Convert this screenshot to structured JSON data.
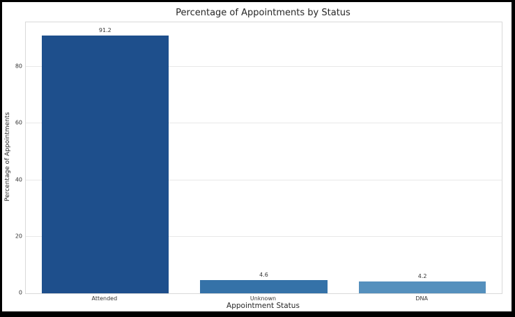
{
  "chart_data": {
    "type": "bar",
    "title": "Percentage of Appointments by Status",
    "xlabel": "Appointment Status",
    "ylabel": "Percentage of Appointments",
    "categories": [
      "Attended",
      "Unknown",
      "DNA"
    ],
    "values": [
      91.2,
      4.6,
      4.2
    ],
    "value_labels": [
      "91.2",
      "4.6",
      "4.2"
    ],
    "bar_colors": [
      "#1e4f8c",
      "#3572a8",
      "#5590bd"
    ],
    "yticks": [
      0,
      20,
      40,
      60,
      80
    ],
    "ylim": [
      0,
      95.76
    ],
    "grid": "horizontal-only",
    "legend": "none",
    "bar_width_fraction": 0.8,
    "colors": {
      "grid_line": "#e8e8e8",
      "plot_border": "#d9d9d9",
      "text": "#262626",
      "tick_text": "#333333",
      "background": "#ffffff",
      "outer_frame": "#000000"
    }
  }
}
